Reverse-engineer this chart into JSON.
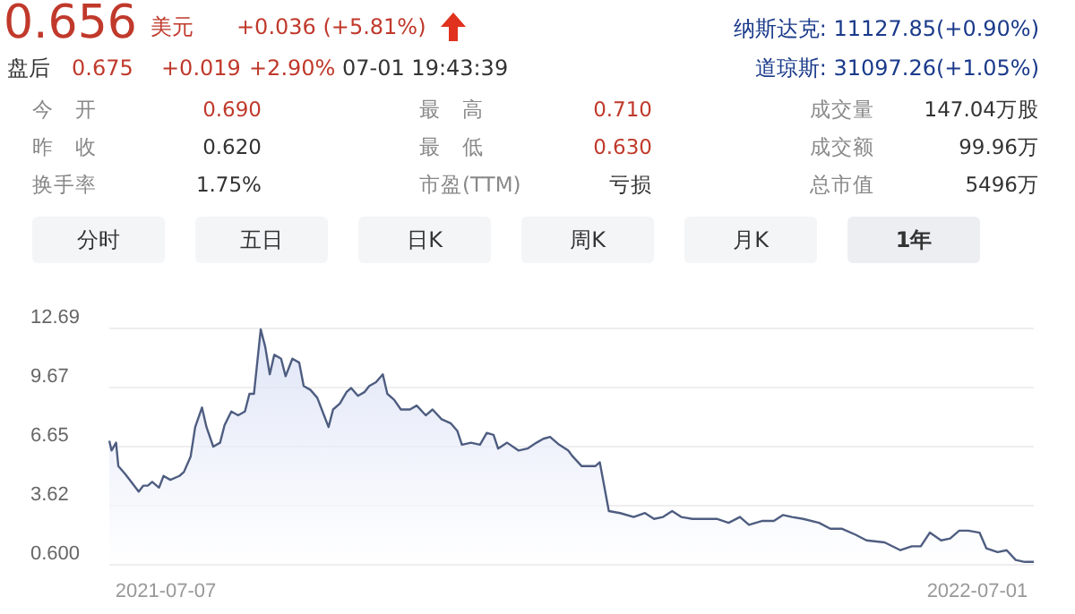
{
  "chart_data": {
    "type": "area",
    "x": [
      "2021-06-12",
      "2021-06-13",
      "2021-06-15",
      "2021-06-16",
      "2021-06-19",
      "2021-06-21",
      "2021-06-25",
      "2021-06-27",
      "2021-06-29",
      "2021-07-01",
      "2021-07-04",
      "2021-07-06",
      "2021-07-09",
      "2021-07-13",
      "2021-07-15",
      "2021-07-18",
      "2021-07-20",
      "2021-07-23",
      "2021-07-25",
      "2021-07-28",
      "2021-07-31",
      "2021-08-02",
      "2021-08-05",
      "2021-08-08",
      "2021-08-11",
      "2021-08-13",
      "2021-08-15",
      "2021-08-18",
      "2021-08-20",
      "2021-08-22",
      "2021-08-24",
      "2021-08-27",
      "2021-08-29",
      "2021-09-01",
      "2021-09-04",
      "2021-09-06",
      "2021-09-09",
      "2021-09-12",
      "2021-09-15",
      "2021-09-17",
      "2021-09-19",
      "2021-09-22",
      "2021-09-25",
      "2021-09-27",
      "2021-09-30",
      "2021-10-03",
      "2021-10-05",
      "2021-10-08",
      "2021-10-11",
      "2021-10-13",
      "2021-10-16",
      "2021-10-19",
      "2021-10-23",
      "2021-10-26",
      "2021-10-30",
      "2021-11-02",
      "2021-11-06",
      "2021-11-10",
      "2021-11-13",
      "2021-11-15",
      "2021-11-19",
      "2021-11-23",
      "2021-11-26",
      "2021-11-29",
      "2021-12-01",
      "2021-12-05",
      "2021-12-10",
      "2021-12-14",
      "2021-12-18",
      "2021-12-21",
      "2021-12-24",
      "2021-12-28",
      "2022-01-01",
      "2022-01-03",
      "2022-01-07",
      "2022-01-13",
      "2022-01-15",
      "2022-01-19",
      "2022-01-24",
      "2022-01-30",
      "2022-02-04",
      "2022-02-08",
      "2022-02-12",
      "2022-02-16",
      "2022-02-20",
      "2022-02-25",
      "2022-03-03",
      "2022-03-08",
      "2022-03-13",
      "2022-03-18",
      "2022-03-22",
      "2022-03-28",
      "2022-04-02",
      "2022-04-06",
      "2022-04-10",
      "2022-04-15",
      "2022-04-22",
      "2022-04-27",
      "2022-05-02",
      "2022-05-08",
      "2022-05-13",
      "2022-05-21",
      "2022-05-28",
      "2022-06-02",
      "2022-06-06",
      "2022-06-10",
      "2022-06-15",
      "2022-06-19",
      "2022-06-23",
      "2022-06-27",
      "2022-07-02",
      "2022-07-05",
      "2022-07-10",
      "2022-07-14",
      "2022-07-18",
      "2022-07-22",
      "2022-07-26"
    ],
    "series": [
      {
        "color": "#4e5d80",
        "values": [
          6.9,
          6.4,
          6.8,
          5.6,
          5.2,
          4.9,
          4.3,
          4.6,
          4.6,
          4.8,
          4.5,
          5.1,
          4.9,
          5.1,
          5.3,
          6.1,
          7.6,
          8.6,
          7.6,
          6.6,
          6.8,
          7.7,
          8.4,
          8.2,
          8.4,
          9.3,
          9.3,
          12.6,
          11.7,
          10.3,
          11.3,
          11.1,
          10.2,
          11.1,
          10.9,
          9.7,
          9.5,
          9.1,
          8.2,
          7.6,
          8.5,
          8.8,
          9.4,
          9.6,
          9.2,
          9.4,
          9.7,
          9.9,
          10.3,
          9.3,
          9.0,
          8.5,
          8.5,
          8.7,
          8.2,
          8.5,
          8.0,
          7.8,
          7.4,
          6.7,
          6.8,
          6.7,
          7.3,
          7.2,
          6.5,
          6.8,
          6.4,
          6.5,
          6.8,
          7.0,
          7.1,
          6.7,
          6.4,
          6.1,
          5.6,
          5.6,
          5.8,
          3.3,
          3.2,
          3.0,
          3.2,
          2.9,
          3.0,
          3.3,
          3.0,
          2.9,
          2.9,
          2.9,
          2.7,
          3.0,
          2.6,
          2.8,
          2.8,
          3.1,
          3.0,
          2.9,
          2.7,
          2.4,
          2.4,
          2.1,
          1.8,
          1.7,
          1.3,
          1.5,
          1.5,
          2.2,
          1.8,
          1.9,
          2.3,
          2.3,
          2.2,
          1.4,
          1.2,
          1.3,
          0.8,
          0.7,
          0.7
        ]
      }
    ],
    "xlim": [
      "2021-06-12",
      "2022-07-26"
    ],
    "xticks": [
      "2021-07-07",
      "2022-07-01"
    ],
    "ylim": [
      0.6,
      12.69
    ],
    "yticks": [
      {
        "value": 0.6,
        "label": "0.600"
      },
      3.62,
      6.65,
      9.67,
      12.69
    ],
    "grid": "y",
    "annotations": [
      "0.656",
      "美元",
      "+0.036 (+5.81%)",
      "盘后",
      "0.675",
      "+0.019",
      "+2.90%",
      "07-01 19:43:39",
      "纳斯达克: 11127.85(+0.90%)",
      "道琼斯: 31097.26(+1.05%)",
      "今　开",
      "0.690",
      "最　高",
      "0.710",
      "成交量",
      "147.04万股",
      "昨　收",
      "0.620",
      "最　低",
      "0.630",
      "成交额",
      "99.96万",
      "换手率",
      "1.75%",
      "市盈(TTM)",
      "亏损",
      "总市值",
      "5496万",
      "分时",
      "五日",
      "日K",
      "周K",
      "月K",
      "1年"
    ]
  }
}
